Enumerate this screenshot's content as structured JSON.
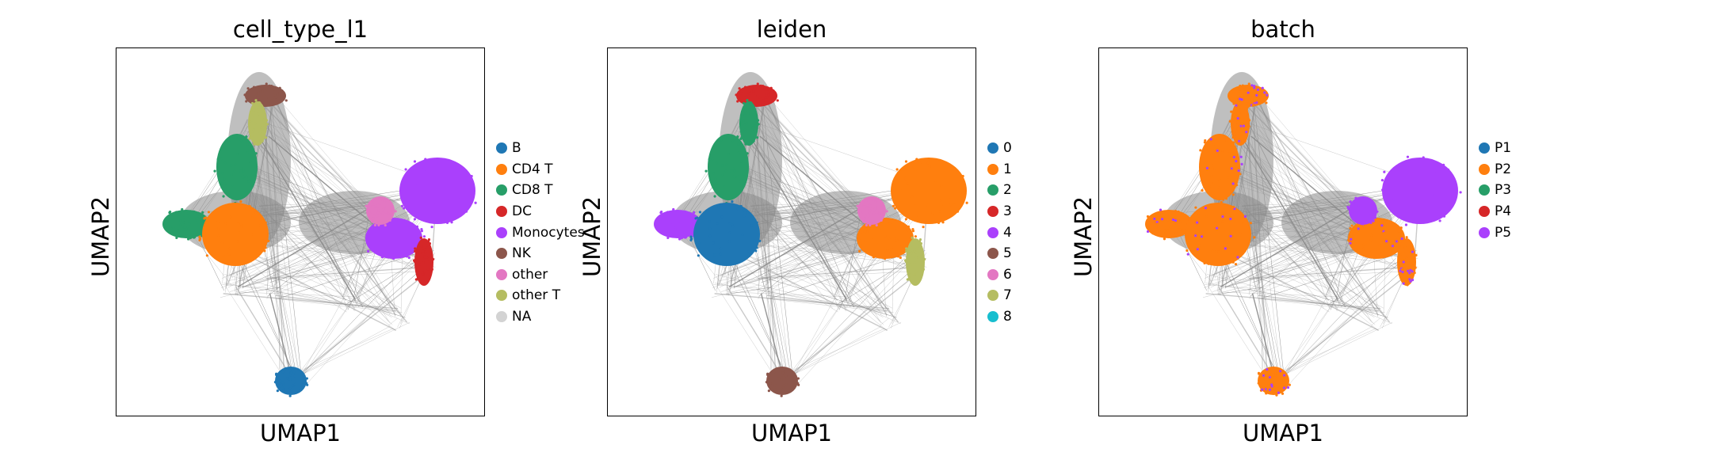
{
  "chart_data": [
    {
      "type": "scatter",
      "title": "cell_type_l1",
      "xlabel": "UMAP1",
      "ylabel": "UMAP2",
      "grid": false,
      "legend_position": "right",
      "legend": [
        {
          "label": "B",
          "color": "#1f77b4"
        },
        {
          "label": "CD4 T",
          "color": "#ff7f0e"
        },
        {
          "label": "CD8 T",
          "color": "#279e68"
        },
        {
          "label": "DC",
          "color": "#d62728"
        },
        {
          "label": "Monocytes",
          "color": "#aa40fc"
        },
        {
          "label": "NK",
          "color": "#8c564b"
        },
        {
          "label": "other",
          "color": "#e377c2"
        },
        {
          "label": "other T",
          "color": "#b5bd61"
        },
        {
          "label": "NA",
          "color": "#d3d3d3"
        }
      ]
    },
    {
      "type": "scatter",
      "title": "leiden",
      "xlabel": "UMAP1",
      "ylabel": "UMAP2",
      "grid": false,
      "legend_position": "right",
      "legend": [
        {
          "label": "0",
          "color": "#1f77b4"
        },
        {
          "label": "1",
          "color": "#ff7f0e"
        },
        {
          "label": "2",
          "color": "#279e68"
        },
        {
          "label": "3",
          "color": "#d62728"
        },
        {
          "label": "4",
          "color": "#aa40fc"
        },
        {
          "label": "5",
          "color": "#8c564b"
        },
        {
          "label": "6",
          "color": "#e377c2"
        },
        {
          "label": "7",
          "color": "#b5bd61"
        },
        {
          "label": "8",
          "color": "#17becf"
        }
      ]
    },
    {
      "type": "scatter",
      "title": "batch",
      "xlabel": "UMAP1",
      "ylabel": "UMAP2",
      "grid": false,
      "legend_position": "right",
      "legend": [
        {
          "label": "P1",
          "color": "#1f77b4"
        },
        {
          "label": "P2",
          "color": "#ff7f0e"
        },
        {
          "label": "P3",
          "color": "#279e68"
        },
        {
          "label": "P4",
          "color": "#d62728"
        },
        {
          "label": "P5",
          "color": "#aa40fc"
        }
      ]
    }
  ]
}
